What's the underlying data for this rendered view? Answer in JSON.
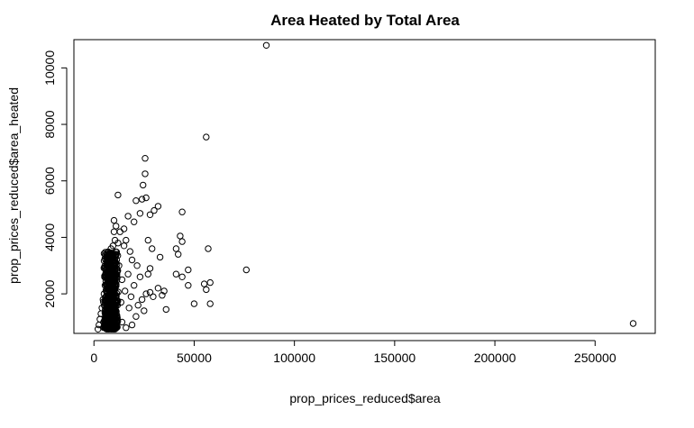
{
  "chart_data": {
    "type": "scatter",
    "title": "Area Heated by Total Area",
    "xlabel": "prop_prices_reduced$area",
    "ylabel": "prop_prices_reduced$area_heated",
    "xlim": [
      -10000,
      280000
    ],
    "ylim": [
      600,
      11000
    ],
    "xticks": [
      0,
      50000,
      100000,
      150000,
      200000,
      250000
    ],
    "xtick_labels": [
      "0",
      "50000",
      "100000",
      "150000",
      "200000",
      "250000"
    ],
    "yticks": [
      2000,
      4000,
      6000,
      8000,
      10000
    ],
    "ytick_labels": [
      "2000",
      "4000",
      "6000",
      "8000",
      "10000"
    ],
    "grid": false,
    "marker": "open-circle",
    "points": [
      [
        86000,
        10800
      ],
      [
        56000,
        7550
      ],
      [
        25500,
        6800
      ],
      [
        25500,
        6250
      ],
      [
        24500,
        5850
      ],
      [
        12000,
        5500
      ],
      [
        26000,
        5400
      ],
      [
        24000,
        5350
      ],
      [
        21000,
        5300
      ],
      [
        32000,
        5100
      ],
      [
        30000,
        4950
      ],
      [
        44000,
        4900
      ],
      [
        23000,
        4850
      ],
      [
        28000,
        4800
      ],
      [
        17000,
        4750
      ],
      [
        10000,
        4600
      ],
      [
        20000,
        4550
      ],
      [
        11000,
        4400
      ],
      [
        15000,
        4300
      ],
      [
        43000,
        4050
      ],
      [
        27000,
        3900
      ],
      [
        44000,
        3850
      ],
      [
        29000,
        3600
      ],
      [
        41000,
        3600
      ],
      [
        57000,
        3600
      ],
      [
        42000,
        3400
      ],
      [
        33000,
        3300
      ],
      [
        76000,
        2850
      ],
      [
        47000,
        2850
      ],
      [
        28000,
        2900
      ],
      [
        41000,
        2700
      ],
      [
        44000,
        2600
      ],
      [
        58000,
        2400
      ],
      [
        55000,
        2350
      ],
      [
        47000,
        2300
      ],
      [
        32000,
        2200
      ],
      [
        35000,
        2100
      ],
      [
        56000,
        2150
      ],
      [
        28000,
        2050
      ],
      [
        34000,
        1950
      ],
      [
        50000,
        1650
      ],
      [
        58000,
        1650
      ],
      [
        36000,
        1450
      ],
      [
        269000,
        950
      ],
      [
        27000,
        2700
      ],
      [
        26000,
        2000
      ],
      [
        24000,
        1800
      ],
      [
        22000,
        1600
      ],
      [
        20000,
        2300
      ],
      [
        19000,
        3200
      ],
      [
        18000,
        3500
      ],
      [
        17000,
        2700
      ],
      [
        16000,
        3900
      ],
      [
        15000,
        3700
      ],
      [
        14000,
        2500
      ],
      [
        13000,
        4200
      ],
      [
        12500,
        3000
      ],
      [
        12000,
        3800
      ],
      [
        11500,
        2600
      ],
      [
        11000,
        3400
      ],
      [
        10500,
        3900
      ],
      [
        10000,
        4200
      ],
      [
        9500,
        3700
      ],
      [
        9000,
        3300
      ],
      [
        8500,
        3600
      ],
      [
        8000,
        3000
      ],
      [
        7500,
        3400
      ],
      [
        7000,
        2800
      ],
      [
        6500,
        3100
      ],
      [
        6000,
        2600
      ],
      [
        5500,
        2300
      ],
      [
        5000,
        2000
      ],
      [
        4500,
        1800
      ],
      [
        4000,
        1500
      ],
      [
        3500,
        1300
      ],
      [
        3000,
        1100
      ],
      [
        2500,
        900
      ],
      [
        2000,
        750
      ],
      [
        21000,
        1200
      ],
      [
        19000,
        900
      ],
      [
        16000,
        800
      ],
      [
        14000,
        1000
      ],
      [
        23000,
        2600
      ],
      [
        21500,
        3000
      ],
      [
        18500,
        1900
      ],
      [
        17500,
        1500
      ],
      [
        15500,
        2100
      ],
      [
        13500,
        1700
      ],
      [
        25000,
        1400
      ],
      [
        29500,
        1900
      ]
    ],
    "dense_cluster": {
      "x_range": [
        3000,
        14000
      ],
      "y_range": [
        750,
        3500
      ],
      "count": 700
    }
  }
}
